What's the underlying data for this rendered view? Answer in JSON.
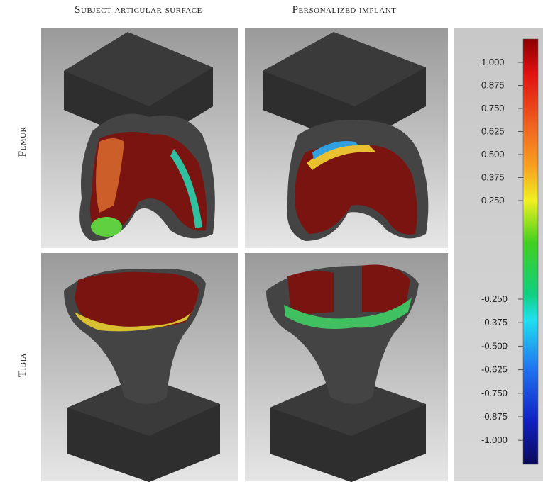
{
  "columns": [
    "Subject articular surface",
    "Personalized implant"
  ],
  "rows": [
    "Femur",
    "Tibia"
  ],
  "scale": {
    "upper_labels": [
      "1.000",
      "0.875",
      "0.750",
      "0.625",
      "0.500",
      "0.375",
      "0.250"
    ],
    "lower_labels": [
      "-0.250",
      "-0.375",
      "-0.500",
      "-0.625",
      "-0.750",
      "-0.875",
      "-1.000"
    ]
  }
}
